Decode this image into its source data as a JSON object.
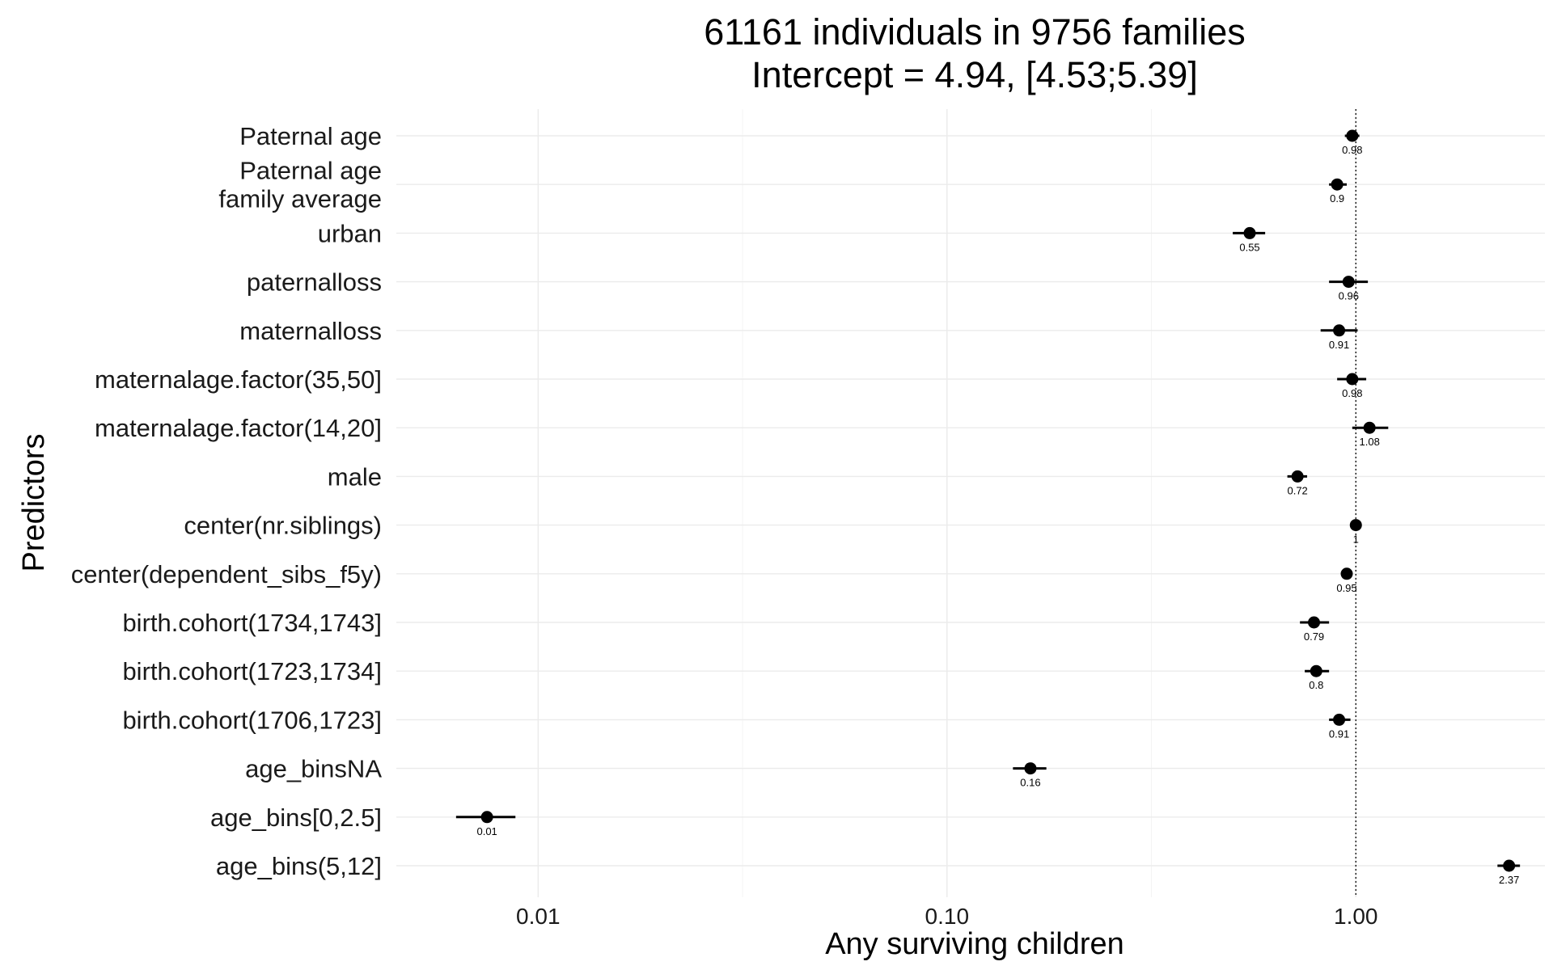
{
  "chart_data": {
    "type": "scatter",
    "subtype": "forest-plot (odds ratios with confidence intervals)",
    "title": "61161 individuals in 9756 families",
    "subtitle": "Intercept = 4.94, [4.53;5.39]",
    "xlabel": "Any surviving children",
    "ylabel": "Predictors",
    "x_scale": "log10",
    "xlim": [
      0.0045,
      2.9
    ],
    "x_ticks": [
      0.01,
      0.1,
      1.0
    ],
    "x_tick_labels": [
      "0.01",
      "0.10",
      "1.00"
    ],
    "reference_line": 1,
    "grid": true,
    "points": [
      {
        "label": "Paternal age",
        "value": 0.98,
        "value_label": "0.98",
        "ci": [
          0.94,
          1.02
        ]
      },
      {
        "label": "Paternal age\nfamily average",
        "value": 0.9,
        "value_label": "0.9",
        "ci": [
          0.86,
          0.95
        ]
      },
      {
        "label": "urban",
        "value": 0.55,
        "value_label": "0.55",
        "ci": [
          0.5,
          0.6
        ]
      },
      {
        "label": "paternalloss",
        "value": 0.96,
        "value_label": "0.96",
        "ci": [
          0.86,
          1.07
        ]
      },
      {
        "label": "maternalloss",
        "value": 0.91,
        "value_label": "0.91",
        "ci": [
          0.82,
          1.01
        ]
      },
      {
        "label": "maternalage.factor(35,50]",
        "value": 0.98,
        "value_label": "0.98",
        "ci": [
          0.9,
          1.06
        ]
      },
      {
        "label": "maternalage.factor(14,20]",
        "value": 1.08,
        "value_label": "1.08",
        "ci": [
          0.98,
          1.2
        ]
      },
      {
        "label": "male",
        "value": 0.72,
        "value_label": "0.72",
        "ci": [
          0.68,
          0.76
        ]
      },
      {
        "label": "center(nr.siblings)",
        "value": 1,
        "value_label": "1",
        "ci": [
          0.99,
          1.01
        ]
      },
      {
        "label": "center(dependent_sibs_f5y)",
        "value": 0.95,
        "value_label": "0.95",
        "ci": [
          0.93,
          0.97
        ]
      },
      {
        "label": "birth.cohort(1734,1743]",
        "value": 0.79,
        "value_label": "0.79",
        "ci": [
          0.73,
          0.86
        ]
      },
      {
        "label": "birth.cohort(1723,1734]",
        "value": 0.8,
        "value_label": "0.8",
        "ci": [
          0.75,
          0.86
        ]
      },
      {
        "label": "birth.cohort(1706,1723]",
        "value": 0.91,
        "value_label": "0.91",
        "ci": [
          0.86,
          0.97
        ]
      },
      {
        "label": "age_binsNA",
        "value": 0.16,
        "value_label": "0.16",
        "ci": [
          0.145,
          0.175
        ]
      },
      {
        "label": "age_bins[0,2.5]",
        "value": 0.0075,
        "value_label": "0.01",
        "ci": [
          0.0063,
          0.0088
        ]
      },
      {
        "label": "age_bins(5,12]",
        "value": 2.37,
        "value_label": "2.37",
        "ci": [
          2.22,
          2.52
        ]
      }
    ]
  }
}
